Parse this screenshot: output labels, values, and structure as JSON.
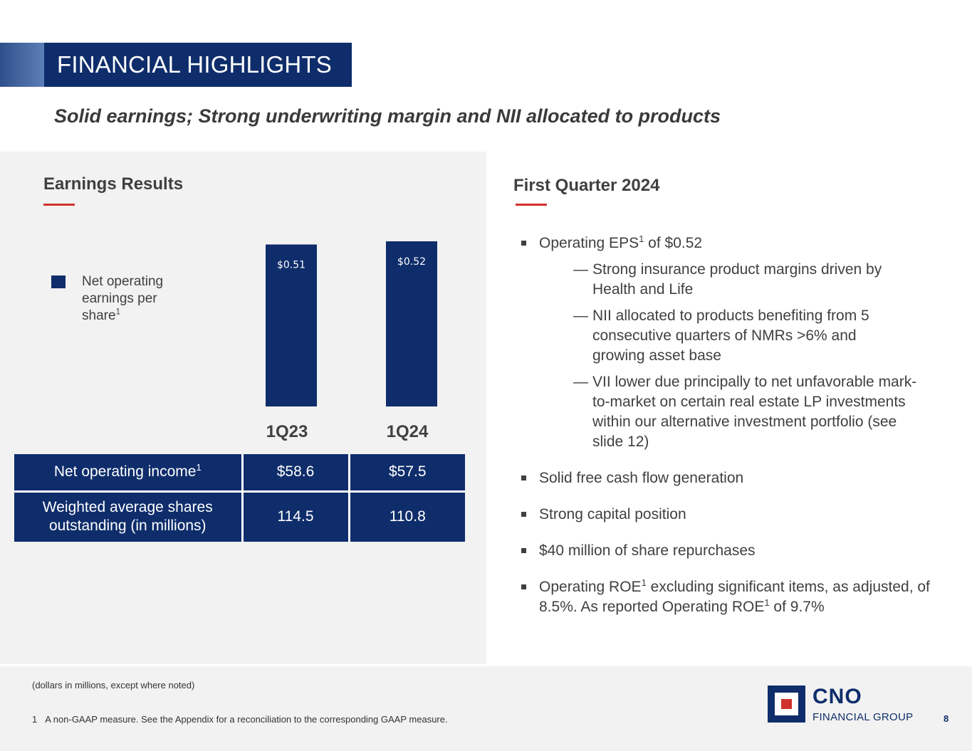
{
  "header": {
    "title": "FINANCIAL HIGHLIGHTS",
    "subtitle": "Solid earnings; Strong underwriting margin and NII allocated to products"
  },
  "left": {
    "heading": "Earnings Results",
    "legend_text": "Net operating earnings per share",
    "legend_sup": "1"
  },
  "right": {
    "heading": "First Quarter 2024",
    "bullet1_pre": "Operating EPS",
    "bullet1_sup": "1",
    "bullet1_post": " of $0.52",
    "sub_dash": "—",
    "sub1": "Strong insurance product margins driven by Health and Life",
    "sub2": "NII allocated to products benefiting from 5 consecutive quarters of NMRs >6% and growing asset base",
    "sub3": "VII lower due principally to net unfavorable mark-to-market on certain real estate LP investments within our alternative investment portfolio (see slide 12)",
    "bullet2": "Solid free cash flow generation",
    "bullet3": "Strong capital position",
    "bullet4": "$40 million of share repurchases",
    "bullet5_a": "Operating ROE",
    "bullet5_sup1": "1",
    "bullet5_b": " excluding significant items, as adjusted, of 8.5%.  As reported Operating ROE",
    "bullet5_sup2": "1",
    "bullet5_c": " of 9.7%"
  },
  "table": {
    "row1": {
      "label": "Net operating income",
      "sup": "1",
      "v1": "$58.6",
      "v2": "$57.5"
    },
    "row2": {
      "label": "Weighted average shares outstanding (in millions)",
      "v1": "114.5",
      "v2": "110.8"
    }
  },
  "footer": {
    "note": "(dollars in millions, except where noted)",
    "footnote_num": "1",
    "footnote_text": "A non-GAAP measure. See the Appendix for a reconciliation to the corresponding GAAP measure.",
    "logo_main": "CNO",
    "logo_sub": "FINANCIAL GROUP",
    "page_number": "8"
  },
  "colors": {
    "navy": "#0f2d6b",
    "red": "#d0312d",
    "panel": "#f2f2f2"
  },
  "chart_data": {
    "type": "bar",
    "categories": [
      "1Q23",
      "1Q24"
    ],
    "values": [
      0.51,
      0.52
    ],
    "data_labels": [
      "$0.51",
      "$0.52"
    ],
    "series": [
      {
        "name": "Net operating earnings per share",
        "values": [
          0.51,
          0.52
        ]
      }
    ],
    "title": "",
    "xlabel": "",
    "ylabel": "",
    "ylim": [
      0,
      0.52
    ],
    "grid": false,
    "legend": "left"
  }
}
